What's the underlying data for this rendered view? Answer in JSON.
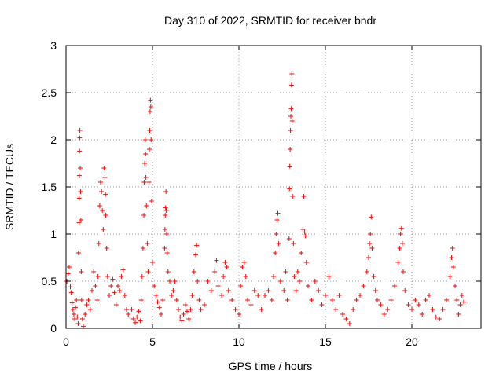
{
  "chart_data": {
    "type": "scatter",
    "title": "Day 310 of 2022, SRMTID for receiver bndr",
    "xlabel": "GPS time / hours",
    "ylabel": "SRMTID / TECUs",
    "xlim": [
      0,
      24
    ],
    "ylim": [
      0,
      3
    ],
    "xticks": [
      0,
      5,
      10,
      15,
      20
    ],
    "xtick_labels": [
      "0",
      "5",
      "10",
      "15",
      "20"
    ],
    "yticks": [
      0,
      0.5,
      1,
      1.5,
      2,
      2.5,
      3
    ],
    "ytick_labels": [
      "0",
      "0.5",
      "1",
      "1.5",
      "2",
      "2.5",
      "3"
    ],
    "grid": true,
    "marker": "+",
    "series": [
      {
        "name": "SRMTID",
        "color": "#ff0000",
        "points": [
          [
            0.05,
            0.5
          ],
          [
            0.12,
            0.58
          ],
          [
            0.18,
            0.65
          ],
          [
            0.25,
            0.44
          ],
          [
            0.3,
            0.38
          ],
          [
            0.35,
            0.27
          ],
          [
            0.4,
            0.2
          ],
          [
            0.45,
            0.15
          ],
          [
            0.5,
            0.1
          ],
          [
            0.55,
            0.22
          ],
          [
            0.6,
            0.3
          ],
          [
            0.65,
            0.12
          ],
          [
            0.7,
            0.05
          ],
          [
            0.72,
            0.8
          ],
          [
            0.75,
            1.12
          ],
          [
            0.76,
            1.38
          ],
          [
            0.77,
            1.62
          ],
          [
            0.78,
            1.88
          ],
          [
            0.79,
            2.02
          ],
          [
            0.8,
            2.1
          ],
          [
            0.82,
            1.7
          ],
          [
            0.84,
            1.45
          ],
          [
            0.86,
            1.15
          ],
          [
            0.88,
            0.6
          ],
          [
            0.9,
            0.3
          ],
          [
            0.95,
            0.1
          ],
          [
            1.0,
            0.02
          ],
          [
            1.1,
            0.15
          ],
          [
            1.2,
            0.25
          ],
          [
            1.3,
            0.3
          ],
          [
            1.4,
            0.2
          ],
          [
            1.5,
            0.4
          ],
          [
            1.6,
            0.6
          ],
          [
            1.7,
            0.45
          ],
          [
            1.8,
            0.3
          ],
          [
            1.85,
            0.55
          ],
          [
            1.9,
            0.9
          ],
          [
            1.95,
            1.3
          ],
          [
            2.0,
            1.55
          ],
          [
            2.05,
            1.45
          ],
          [
            2.1,
            1.25
          ],
          [
            2.15,
            1.05
          ],
          [
            2.2,
            1.7
          ],
          [
            2.25,
            1.6
          ],
          [
            2.28,
            1.42
          ],
          [
            2.3,
            1.2
          ],
          [
            2.35,
            0.85
          ],
          [
            2.4,
            0.55
          ],
          [
            2.5,
            0.35
          ],
          [
            2.6,
            0.45
          ],
          [
            2.7,
            0.52
          ],
          [
            2.8,
            0.38
          ],
          [
            2.9,
            0.25
          ],
          [
            3.0,
            0.45
          ],
          [
            3.1,
            0.4
          ],
          [
            3.2,
            0.55
          ],
          [
            3.3,
            0.62
          ],
          [
            3.4,
            0.35
          ],
          [
            3.5,
            0.2
          ],
          [
            3.6,
            0.15
          ],
          [
            3.7,
            0.12
          ],
          [
            3.8,
            0.2
          ],
          [
            3.9,
            0.1
          ],
          [
            4.0,
            0.06
          ],
          [
            4.1,
            0.12
          ],
          [
            4.2,
            0.18
          ],
          [
            4.3,
            0.08
          ],
          [
            4.35,
            0.3
          ],
          [
            4.4,
            0.55
          ],
          [
            4.45,
            0.85
          ],
          [
            4.5,
            1.2
          ],
          [
            4.52,
            1.55
          ],
          [
            4.55,
            1.75
          ],
          [
            4.58,
            2.0
          ],
          [
            4.6,
            1.85
          ],
          [
            4.62,
            1.6
          ],
          [
            4.65,
            1.3
          ],
          [
            4.7,
            0.9
          ],
          [
            4.75,
            0.6
          ],
          [
            4.8,
            1.55
          ],
          [
            4.82,
            1.9
          ],
          [
            4.84,
            2.1
          ],
          [
            4.86,
            2.3
          ],
          [
            4.88,
            2.42
          ],
          [
            4.9,
            2.35
          ],
          [
            4.92,
            2.0
          ],
          [
            4.95,
            1.35
          ],
          [
            5.0,
            0.7
          ],
          [
            5.1,
            0.45
          ],
          [
            5.2,
            0.35
          ],
          [
            5.3,
            0.28
          ],
          [
            5.4,
            0.22
          ],
          [
            5.5,
            0.15
          ],
          [
            5.6,
            0.3
          ],
          [
            5.7,
            0.85
          ],
          [
            5.72,
            1.05
          ],
          [
            5.74,
            1.2
          ],
          [
            5.76,
            1.28
          ],
          [
            5.78,
            1.45
          ],
          [
            5.8,
            1.25
          ],
          [
            5.82,
            1.0
          ],
          [
            5.85,
            0.8
          ],
          [
            5.9,
            0.6
          ],
          [
            6.0,
            0.5
          ],
          [
            6.1,
            0.35
          ],
          [
            6.2,
            0.4
          ],
          [
            6.3,
            0.5
          ],
          [
            6.4,
            0.3
          ],
          [
            6.5,
            0.2
          ],
          [
            6.6,
            0.12
          ],
          [
            6.7,
            0.08
          ],
          [
            6.8,
            0.15
          ],
          [
            6.9,
            0.25
          ],
          [
            7.0,
            0.18
          ],
          [
            7.1,
            0.1
          ],
          [
            7.2,
            0.2
          ],
          [
            7.3,
            0.35
          ],
          [
            7.4,
            0.6
          ],
          [
            7.5,
            0.78
          ],
          [
            7.55,
            0.88
          ],
          [
            7.6,
            0.5
          ],
          [
            7.7,
            0.3
          ],
          [
            7.8,
            0.2
          ],
          [
            8.0,
            0.25
          ],
          [
            8.2,
            0.5
          ],
          [
            8.4,
            0.4
          ],
          [
            8.6,
            0.6
          ],
          [
            8.7,
            0.72
          ],
          [
            8.8,
            0.45
          ],
          [
            9.0,
            0.35
          ],
          [
            9.1,
            0.55
          ],
          [
            9.2,
            0.7
          ],
          [
            9.3,
            0.65
          ],
          [
            9.4,
            0.4
          ],
          [
            9.6,
            0.3
          ],
          [
            9.8,
            0.2
          ],
          [
            10.0,
            0.15
          ],
          [
            10.1,
            0.45
          ],
          [
            10.2,
            0.65
          ],
          [
            10.3,
            0.7
          ],
          [
            10.4,
            0.55
          ],
          [
            10.5,
            0.3
          ],
          [
            10.7,
            0.25
          ],
          [
            10.9,
            0.4
          ],
          [
            11.1,
            0.35
          ],
          [
            11.3,
            0.2
          ],
          [
            11.5,
            0.35
          ],
          [
            11.7,
            0.4
          ],
          [
            11.9,
            0.3
          ],
          [
            12.0,
            0.55
          ],
          [
            12.1,
            0.8
          ],
          [
            12.15,
            1.0
          ],
          [
            12.2,
            1.15
          ],
          [
            12.25,
            1.22
          ],
          [
            12.3,
            0.9
          ],
          [
            12.4,
            0.5
          ],
          [
            12.6,
            0.4
          ],
          [
            12.7,
            0.6
          ],
          [
            12.8,
            0.3
          ],
          [
            12.9,
            0.95
          ],
          [
            12.92,
            1.48
          ],
          [
            12.94,
            1.72
          ],
          [
            12.96,
            1.9
          ],
          [
            12.98,
            2.1
          ],
          [
            13.0,
            2.25
          ],
          [
            13.02,
            2.33
          ],
          [
            13.04,
            2.58
          ],
          [
            13.06,
            2.7
          ],
          [
            13.08,
            2.2
          ],
          [
            13.1,
            1.4
          ],
          [
            13.15,
            0.9
          ],
          [
            13.2,
            0.55
          ],
          [
            13.3,
            0.4
          ],
          [
            13.4,
            0.6
          ],
          [
            13.5,
            0.5
          ],
          [
            13.6,
            0.8
          ],
          [
            13.7,
            1.05
          ],
          [
            13.75,
            1.4
          ],
          [
            13.8,
            1.02
          ],
          [
            13.85,
            0.98
          ],
          [
            13.9,
            0.7
          ],
          [
            14.0,
            0.45
          ],
          [
            14.2,
            0.3
          ],
          [
            14.4,
            0.5
          ],
          [
            14.6,
            0.4
          ],
          [
            14.8,
            0.25
          ],
          [
            15.0,
            0.35
          ],
          [
            15.2,
            0.55
          ],
          [
            15.4,
            0.3
          ],
          [
            15.6,
            0.2
          ],
          [
            15.8,
            0.35
          ],
          [
            16.0,
            0.15
          ],
          [
            16.2,
            0.1
          ],
          [
            16.4,
            0.05
          ],
          [
            16.6,
            0.2
          ],
          [
            16.8,
            0.3
          ],
          [
            17.0,
            0.35
          ],
          [
            17.2,
            0.45
          ],
          [
            17.4,
            0.6
          ],
          [
            17.5,
            0.75
          ],
          [
            17.55,
            0.9
          ],
          [
            17.6,
            1.0
          ],
          [
            17.65,
            1.18
          ],
          [
            17.7,
            0.85
          ],
          [
            17.8,
            0.55
          ],
          [
            17.9,
            0.4
          ],
          [
            18.0,
            0.3
          ],
          [
            18.2,
            0.25
          ],
          [
            18.4,
            0.15
          ],
          [
            18.6,
            0.2
          ],
          [
            18.8,
            0.3
          ],
          [
            19.0,
            0.45
          ],
          [
            19.2,
            0.7
          ],
          [
            19.3,
            0.85
          ],
          [
            19.35,
            1.0
          ],
          [
            19.4,
            1.06
          ],
          [
            19.45,
            0.9
          ],
          [
            19.5,
            0.6
          ],
          [
            19.6,
            0.4
          ],
          [
            19.8,
            0.25
          ],
          [
            20.0,
            0.2
          ],
          [
            20.2,
            0.3
          ],
          [
            20.4,
            0.25
          ],
          [
            20.6,
            0.15
          ],
          [
            20.8,
            0.3
          ],
          [
            21.0,
            0.35
          ],
          [
            21.2,
            0.2
          ],
          [
            21.4,
            0.12
          ],
          [
            21.6,
            0.1
          ],
          [
            21.8,
            0.2
          ],
          [
            22.0,
            0.3
          ],
          [
            22.2,
            0.55
          ],
          [
            22.3,
            0.75
          ],
          [
            22.35,
            0.85
          ],
          [
            22.4,
            0.65
          ],
          [
            22.5,
            0.45
          ],
          [
            22.6,
            0.3
          ],
          [
            22.7,
            0.15
          ],
          [
            22.8,
            0.25
          ],
          [
            22.9,
            0.35
          ],
          [
            23.0,
            0.28
          ]
        ]
      }
    ]
  }
}
